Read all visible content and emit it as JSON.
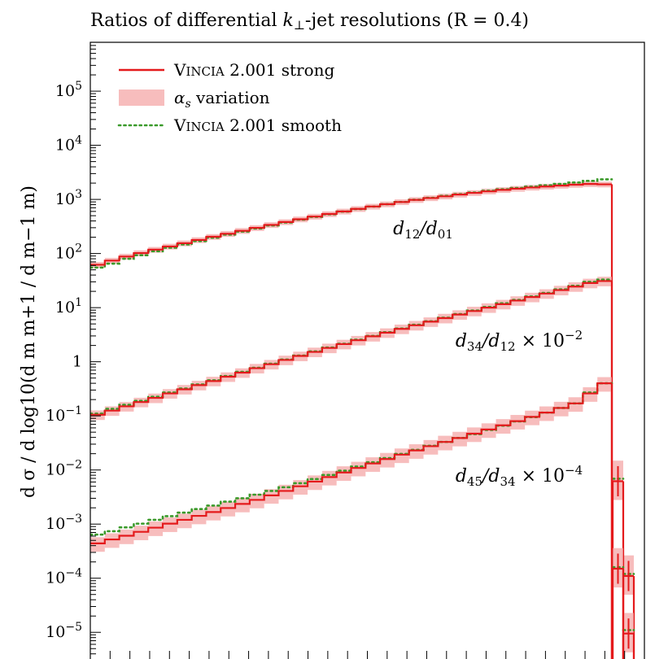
{
  "chart_data": {
    "type": "line",
    "title": "Ratios of differential k⊥-jet resolutions (R = 0.4)",
    "ylabel": "d σ / d log10(d m m+1 / d m−1 m)",
    "yscale": "log",
    "ylim": [
      3e-06,
      800000
    ],
    "ytick_labels": [
      {
        "value": 100000,
        "base": "10",
        "exp": "5"
      },
      {
        "value": 10000,
        "base": "10",
        "exp": "4"
      },
      {
        "value": 1000,
        "base": "10",
        "exp": "3"
      },
      {
        "value": 100,
        "base": "10",
        "exp": "2"
      },
      {
        "value": 10,
        "base": "10",
        "exp": "1"
      },
      {
        "value": 1,
        "base": "1",
        "exp": ""
      },
      {
        "value": 0.1,
        "base": "10",
        "exp": "−1"
      },
      {
        "value": 0.01,
        "base": "10",
        "exp": "−2"
      },
      {
        "value": 0.001,
        "base": "10",
        "exp": "−3"
      },
      {
        "value": 0.0001,
        "base": "10",
        "exp": "−4"
      },
      {
        "value": 1e-05,
        "base": "10",
        "exp": "−5"
      }
    ],
    "n_bins": 36,
    "legend": {
      "position": "top-left",
      "entries": [
        {
          "label": "VINCIA 2.001 strong",
          "style": "line",
          "color": "#e41a1c"
        },
        {
          "label": "αs variation",
          "style": "band",
          "color": "#f4a7a7"
        },
        {
          "label": "VINCIA 2.001 smooth",
          "style": "dotted",
          "color": "#3a9a2a"
        }
      ]
    },
    "colors": {
      "strong": "#e41a1c",
      "band": "#f4a7a7",
      "smooth": "#3a9a2a"
    },
    "series": [
      {
        "label": "d12/d01",
        "strong": [
          62,
          74,
          88,
          102,
          118,
          135,
          155,
          178,
          204,
          232,
          263,
          298,
          338,
          382,
          430,
          482,
          538,
          600,
          668,
          740,
          815,
          895,
          980,
          1060,
          1140,
          1230,
          1320,
          1410,
          1500,
          1580,
          1660,
          1730,
          1800,
          1870,
          1930,
          1900
        ],
        "smooth": [
          55,
          65,
          80,
          93,
          110,
          128,
          147,
          170,
          196,
          224,
          255,
          290,
          330,
          374,
          423,
          476,
          532,
          595,
          664,
          738,
          815,
          897,
          985,
          1070,
          1160,
          1250,
          1340,
          1440,
          1540,
          1630,
          1720,
          1820,
          1930,
          2050,
          2200,
          2350
        ],
        "band_frac": 0.12,
        "tail_strong": [],
        "tail_smooth": []
      },
      {
        "label": "d34/d12 × 10−2",
        "strong": [
          0.105,
          0.125,
          0.15,
          0.18,
          0.215,
          0.26,
          0.31,
          0.37,
          0.44,
          0.53,
          0.63,
          0.76,
          0.9,
          1.08,
          1.28,
          1.52,
          1.8,
          2.12,
          2.5,
          2.95,
          3.45,
          4.05,
          4.72,
          5.5,
          6.4,
          7.45,
          8.65,
          10.0,
          11.6,
          13.5,
          15.7,
          18.2,
          21.1,
          24.5,
          28.5,
          31.0
        ],
        "smooth": [
          0.11,
          0.135,
          0.16,
          0.19,
          0.225,
          0.27,
          0.32,
          0.38,
          0.455,
          0.545,
          0.65,
          0.775,
          0.92,
          1.1,
          1.3,
          1.55,
          1.83,
          2.15,
          2.55,
          3.0,
          3.52,
          4.12,
          4.82,
          5.6,
          6.5,
          7.6,
          8.85,
          10.3,
          12.0,
          13.9,
          16.1,
          18.7,
          21.8,
          25.3,
          30.0,
          33.0
        ],
        "band_frac": 0.2,
        "tail_strong": [
          0.0062,
          0.00011
        ],
        "tail_smooth": [
          0.0069,
          0.00012
        ]
      },
      {
        "label": "d45/d34 × 10−4",
        "strong": [
          0.00044,
          0.00052,
          0.00061,
          0.00072,
          0.00086,
          0.00102,
          0.0012,
          0.00142,
          0.00167,
          0.00198,
          0.00236,
          0.0028,
          0.0034,
          0.0041,
          0.005,
          0.0061,
          0.0074,
          0.009,
          0.0109,
          0.0132,
          0.0159,
          0.0192,
          0.023,
          0.0275,
          0.033,
          0.039,
          0.047,
          0.056,
          0.067,
          0.08,
          0.096,
          0.115,
          0.14,
          0.17,
          0.26,
          0.4
        ],
        "smooth": [
          0.00064,
          0.00074,
          0.00087,
          0.00102,
          0.0012,
          0.0014,
          0.00163,
          0.0019,
          0.0022,
          0.0026,
          0.003,
          0.0035,
          0.0041,
          0.0048,
          0.0057,
          0.0068,
          0.0081,
          0.0097,
          0.0116,
          0.0139,
          0.0166,
          0.0198,
          0.0236,
          0.028,
          0.033,
          0.039,
          0.046,
          0.055,
          0.066,
          0.079,
          0.095,
          0.115,
          0.14,
          0.17,
          0.27,
          0.4
        ],
        "band_frac": 0.3,
        "tail_strong": [
          0.00015,
          9.5e-06
        ],
        "tail_smooth": [
          0.00016,
          1.1e-05
        ]
      }
    ],
    "annotations": [
      {
        "text": "d12/d01",
        "y": 300,
        "align": "center"
      },
      {
        "text": "d34/d12 × 10−2",
        "y": 2.5,
        "align": "center"
      },
      {
        "text": "d45/d34 × 10−4",
        "y": 0.008,
        "align": "center"
      }
    ]
  }
}
